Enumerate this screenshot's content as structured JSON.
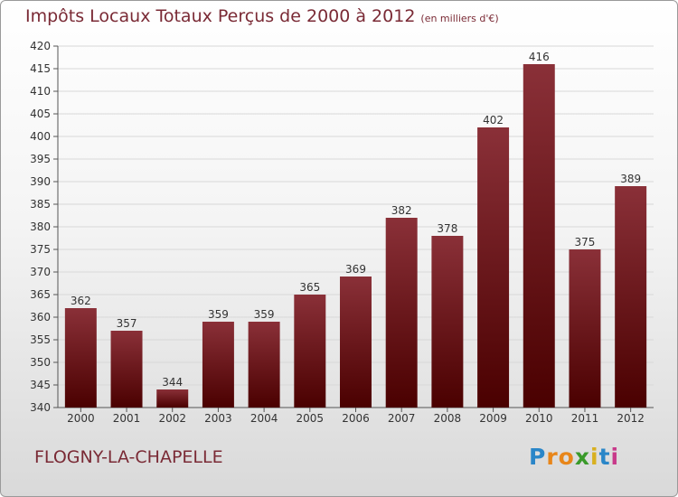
{
  "page": {
    "title": "Impôts Locaux Totaux Perçus de 2000 à 2012",
    "unit": "(en milliers d'€)",
    "place_name": "FLOGNY-LA-CHAPELLE",
    "logo": {
      "letters": [
        "P",
        "r",
        "o",
        "x",
        "i",
        "t",
        "i"
      ],
      "colors": [
        "#2a86c8",
        "#e8861a",
        "#e8861a",
        "#3a9a2a",
        "#d8b020",
        "#2a86c8",
        "#c83a8a"
      ]
    }
  },
  "colors": {
    "title": "#7a2a35",
    "bar_top": "#8a3038",
    "bar_bottom": "#4a0000",
    "grid": "#d8d8d8"
  },
  "chart_data": {
    "type": "bar",
    "title": "Impôts Locaux Totaux Perçus de 2000 à 2012",
    "subtitle": "(en milliers d'€)",
    "categories": [
      "2000",
      "2001",
      "2002",
      "2003",
      "2004",
      "2005",
      "2006",
      "2007",
      "2008",
      "2009",
      "2010",
      "2011",
      "2012"
    ],
    "values": [
      362,
      357,
      344,
      359,
      359,
      365,
      369,
      382,
      378,
      402,
      416,
      375,
      389
    ],
    "data_labels": [
      "362",
      "357",
      "344",
      "359",
      "359",
      "365",
      "369",
      "382",
      "378",
      "402",
      "416",
      "375",
      "389"
    ],
    "ylim": [
      340,
      420
    ],
    "ytick_step": 5,
    "yticks": [
      "340",
      "345",
      "350",
      "355",
      "360",
      "365",
      "370",
      "375",
      "380",
      "385",
      "390",
      "395",
      "400",
      "405",
      "410",
      "415",
      "420"
    ],
    "xlabel": "",
    "ylabel": "",
    "grid": true
  }
}
